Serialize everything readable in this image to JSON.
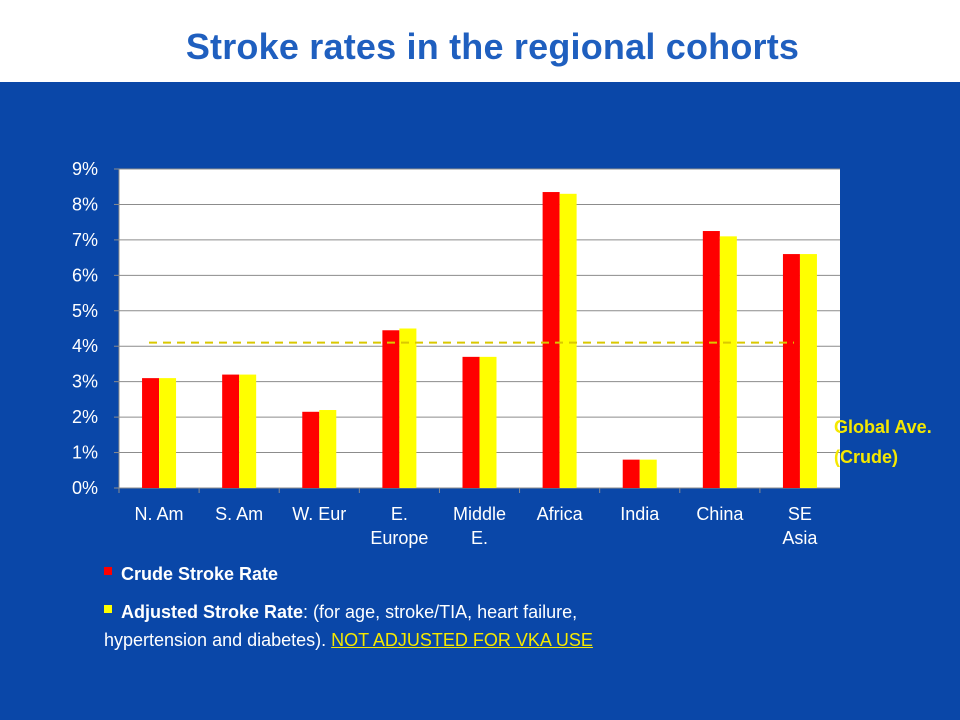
{
  "slide": {
    "title": "Stroke rates in the regional cohorts",
    "background_color": "#0a47a8",
    "title_color": "#1f5fbf"
  },
  "chart_data": {
    "type": "bar",
    "title": "",
    "categories": [
      [
        "N. Am"
      ],
      [
        "S. Am"
      ],
      [
        "W. Eur"
      ],
      [
        "E.",
        "Europe"
      ],
      [
        "Middle",
        "E."
      ],
      [
        "Africa"
      ],
      [
        "India"
      ],
      [
        "China"
      ],
      [
        "SE",
        "Asia"
      ]
    ],
    "series": [
      {
        "name": "Crude Stroke Rate",
        "color": "#ff0000",
        "values": [
          3.1,
          3.2,
          2.15,
          4.45,
          3.7,
          8.35,
          0.8,
          7.25,
          6.6
        ]
      },
      {
        "name": "Adjusted Stroke Rate",
        "color": "#ffff00",
        "values": [
          3.1,
          3.2,
          2.2,
          4.5,
          3.7,
          8.3,
          0.8,
          7.1,
          6.6
        ]
      }
    ],
    "ylim": [
      0,
      9
    ],
    "yticks": [
      0,
      1,
      2,
      3,
      4,
      5,
      6,
      7,
      8,
      9
    ],
    "ytick_labels": [
      "0%",
      "1%",
      "2%",
      "3%",
      "4%",
      "5%",
      "6%",
      "7%",
      "8%",
      "9%"
    ],
    "grid": true,
    "reference_line": {
      "value": 4.1,
      "color": "#d9c800",
      "style": "dashed",
      "label": [
        "Global Ave.",
        "(Crude)"
      ],
      "label_color": "#f5e800"
    },
    "plot_background": "#ffffff"
  },
  "legend": {
    "crude_label": "Crude Stroke Rate",
    "adjusted_label": "Adjusted Stroke Rate",
    "adjusted_note": ": (for age, stroke/TIA, heart failure,",
    "adjusted_note_line2": "hypertension and diabetes).",
    "adjusted_warning": "NOT ADJUSTED FOR VKA USE"
  }
}
